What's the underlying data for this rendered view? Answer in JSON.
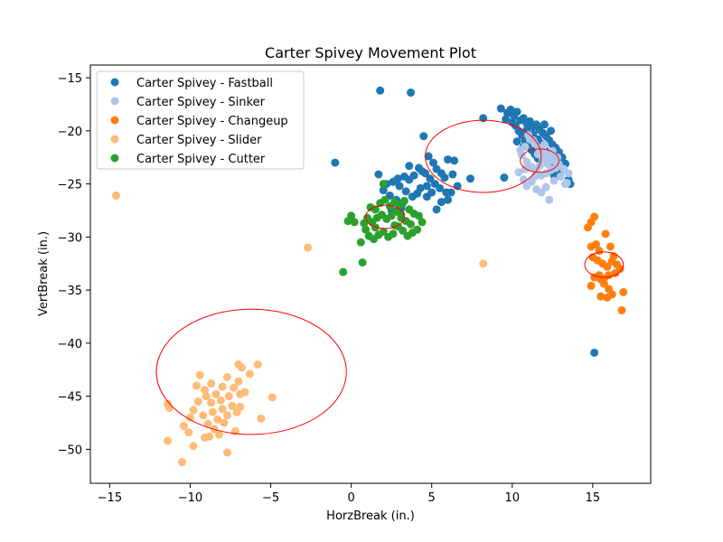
{
  "chart_data": {
    "type": "scatter",
    "title": "Carter Spivey Movement Plot",
    "xlabel": "HorzBreak (in.)",
    "ylabel": "VertBreak (in.)",
    "xlim": [
      -16.2,
      18.6
    ],
    "ylim": [
      -53.2,
      -13.8
    ],
    "xticks": [
      -15,
      -10,
      -5,
      0,
      5,
      10,
      15
    ],
    "yticks": [
      -15,
      -20,
      -25,
      -30,
      -35,
      -40,
      -45,
      -50
    ],
    "grid": false,
    "legend_position": "top-left",
    "series": [
      {
        "name": "Carter Spivey - Fastball",
        "color": "#1f77b4",
        "points": [
          [
            1.8,
            -16.2
          ],
          [
            3.7,
            -16.4
          ],
          [
            -1.0,
            -23.0
          ],
          [
            1.7,
            -24.1
          ],
          [
            15.1,
            -40.9
          ],
          [
            9.5,
            -24.4
          ],
          [
            8.2,
            -18.8
          ],
          [
            7.4,
            -24.5
          ],
          [
            4.5,
            -20.5
          ],
          [
            4.8,
            -22.4
          ],
          [
            5.1,
            -23.0
          ],
          [
            5.3,
            -23.6
          ],
          [
            5.6,
            -24.0
          ],
          [
            5.8,
            -24.4
          ],
          [
            6.0,
            -22.7
          ],
          [
            6.4,
            -22.8
          ],
          [
            6.6,
            -25.2
          ],
          [
            6.2,
            -25.8
          ],
          [
            6.0,
            -26.5
          ],
          [
            5.6,
            -26.7
          ],
          [
            5.3,
            -27.4
          ],
          [
            4.7,
            -26.2
          ],
          [
            4.3,
            -25.4
          ],
          [
            4.1,
            -25.9
          ],
          [
            3.8,
            -26.2
          ],
          [
            3.4,
            -25.7
          ],
          [
            3.0,
            -25.2
          ],
          [
            2.6,
            -24.8
          ],
          [
            2.2,
            -25.0
          ],
          [
            2.0,
            -25.6
          ],
          [
            2.4,
            -26.1
          ],
          [
            2.8,
            -26.5
          ],
          [
            3.2,
            -26.8
          ],
          [
            3.6,
            -24.6
          ],
          [
            3.9,
            -24.2
          ],
          [
            4.2,
            -23.5
          ],
          [
            4.6,
            -24.0
          ],
          [
            4.9,
            -24.5
          ],
          [
            5.2,
            -25.0
          ],
          [
            5.5,
            -25.4
          ],
          [
            5.9,
            -25.8
          ],
          [
            6.3,
            -24.1
          ],
          [
            3.3,
            -24.3
          ],
          [
            2.9,
            -24.5
          ],
          [
            3.6,
            -23.3
          ],
          [
            4.4,
            -23.8
          ],
          [
            4.7,
            -25.2
          ],
          [
            5.0,
            -25.8
          ],
          [
            3.1,
            -27.3
          ],
          [
            2.5,
            -27.5
          ],
          [
            9.7,
            -18.3
          ],
          [
            9.9,
            -18.0
          ],
          [
            10.1,
            -18.6
          ],
          [
            10.3,
            -18.2
          ],
          [
            10.5,
            -19.0
          ],
          [
            10.7,
            -18.8
          ],
          [
            10.9,
            -19.3
          ],
          [
            11.1,
            -19.1
          ],
          [
            11.3,
            -19.6
          ],
          [
            11.5,
            -19.4
          ],
          [
            11.7,
            -19.9
          ],
          [
            11.9,
            -20.2
          ],
          [
            12.1,
            -20.5
          ],
          [
            12.3,
            -20.9
          ],
          [
            12.5,
            -21.3
          ],
          [
            12.7,
            -21.6
          ],
          [
            12.9,
            -22.0
          ],
          [
            13.1,
            -22.5
          ],
          [
            13.3,
            -23.1
          ],
          [
            13.0,
            -23.8
          ],
          [
            12.6,
            -24.2
          ],
          [
            13.5,
            -24.6
          ],
          [
            13.6,
            -25.0
          ],
          [
            10.2,
            -19.5
          ],
          [
            10.4,
            -20.0
          ],
          [
            10.6,
            -20.4
          ],
          [
            10.8,
            -20.9
          ],
          [
            11.0,
            -21.3
          ],
          [
            11.2,
            -21.8
          ],
          [
            11.4,
            -22.2
          ],
          [
            11.6,
            -22.6
          ],
          [
            11.8,
            -21.2
          ],
          [
            12.0,
            -21.7
          ],
          [
            12.2,
            -22.1
          ],
          [
            12.4,
            -22.6
          ],
          [
            12.6,
            -23.0
          ],
          [
            11.3,
            -20.3
          ],
          [
            10.9,
            -19.9
          ],
          [
            11.6,
            -20.8
          ],
          [
            12.0,
            -19.4
          ],
          [
            12.4,
            -20.0
          ],
          [
            10.0,
            -19.2
          ],
          [
            9.6,
            -18.9
          ],
          [
            10.3,
            -21.0
          ],
          [
            10.7,
            -21.5
          ],
          [
            9.3,
            -17.9
          ]
        ]
      },
      {
        "name": "Carter Spivey - Sinker",
        "color": "#aec7e8",
        "points": [
          [
            10.4,
            -23.9
          ],
          [
            10.7,
            -24.6
          ],
          [
            10.9,
            -25.2
          ],
          [
            11.2,
            -24.8
          ],
          [
            11.5,
            -25.5
          ],
          [
            11.8,
            -25.8
          ],
          [
            12.1,
            -25.3
          ],
          [
            12.3,
            -26.5
          ],
          [
            12.6,
            -24.7
          ],
          [
            13.0,
            -24.3
          ],
          [
            13.3,
            -25.0
          ],
          [
            13.5,
            -24.0
          ],
          [
            13.2,
            -23.6
          ],
          [
            12.9,
            -23.2
          ],
          [
            12.6,
            -22.8
          ],
          [
            12.3,
            -22.4
          ],
          [
            12.0,
            -22.0
          ],
          [
            11.7,
            -21.6
          ],
          [
            11.4,
            -21.2
          ],
          [
            11.1,
            -20.8
          ],
          [
            10.8,
            -21.5
          ],
          [
            10.6,
            -22.3
          ],
          [
            10.9,
            -22.9
          ],
          [
            11.2,
            -23.4
          ],
          [
            11.5,
            -23.8
          ],
          [
            11.8,
            -24.2
          ],
          [
            12.1,
            -24.0
          ],
          [
            12.4,
            -23.7
          ],
          [
            12.7,
            -23.5
          ],
          [
            11.0,
            -20.4
          ],
          [
            11.3,
            -20.9
          ],
          [
            11.6,
            -22.2
          ],
          [
            11.9,
            -22.7
          ],
          [
            12.2,
            -23.1
          ],
          [
            12.5,
            -21.9
          ],
          [
            12.8,
            -22.5
          ],
          [
            10.5,
            -21.8
          ],
          [
            11.4,
            -24.3
          ],
          [
            11.7,
            -23.3
          ],
          [
            12.0,
            -21.3
          ],
          [
            10.8,
            -23.6
          ],
          [
            13.4,
            -24.9
          ]
        ]
      },
      {
        "name": "Carter Spivey - Changeup",
        "color": "#ff7f0e",
        "points": [
          [
            15.1,
            -28.1
          ],
          [
            14.9,
            -28.6
          ],
          [
            14.7,
            -29.1
          ],
          [
            15.8,
            -29.7
          ],
          [
            16.1,
            -30.9
          ],
          [
            15.4,
            -31.3
          ],
          [
            15.2,
            -30.7
          ],
          [
            14.9,
            -30.9
          ],
          [
            15.0,
            -31.9
          ],
          [
            15.3,
            -32.2
          ],
          [
            15.6,
            -32.5
          ],
          [
            15.9,
            -32.8
          ],
          [
            16.2,
            -32.3
          ],
          [
            16.5,
            -32.6
          ],
          [
            16.7,
            -33.0
          ],
          [
            16.4,
            -33.4
          ],
          [
            16.0,
            -33.6
          ],
          [
            15.7,
            -33.9
          ],
          [
            15.4,
            -33.6
          ],
          [
            15.1,
            -33.8
          ],
          [
            14.9,
            -34.6
          ],
          [
            15.7,
            -34.4
          ],
          [
            16.0,
            -34.9
          ],
          [
            15.5,
            -35.6
          ],
          [
            16.2,
            -35.4
          ],
          [
            15.9,
            -35.7
          ],
          [
            16.9,
            -35.2
          ],
          [
            16.8,
            -36.9
          ],
          [
            15.5,
            -34.0
          ],
          [
            16.3,
            -31.8
          ]
        ]
      },
      {
        "name": "Carter Spivey - Slider",
        "color": "#ffbb78",
        "points": [
          [
            -14.6,
            -26.1
          ],
          [
            -2.7,
            -31.0
          ],
          [
            8.2,
            -32.5
          ],
          [
            -10.5,
            -51.2
          ],
          [
            -7.7,
            -50.3
          ],
          [
            -11.4,
            -49.2
          ],
          [
            -9.8,
            -49.7
          ],
          [
            -11.4,
            -45.7
          ],
          [
            -11.3,
            -46.1
          ],
          [
            -10.4,
            -47.8
          ],
          [
            -10.1,
            -48.4
          ],
          [
            -9.4,
            -43.0
          ],
          [
            -9.1,
            -44.4
          ],
          [
            -8.7,
            -43.8
          ],
          [
            -8.4,
            -44.8
          ],
          [
            -8.1,
            -45.4
          ],
          [
            -7.7,
            -43.2
          ],
          [
            -7.3,
            -44.2
          ],
          [
            -7.0,
            -43.6
          ],
          [
            -6.8,
            -42.3
          ],
          [
            -6.6,
            -44.6
          ],
          [
            -6.3,
            -42.9
          ],
          [
            -5.8,
            -42.0
          ],
          [
            -4.9,
            -45.1
          ],
          [
            -5.6,
            -47.1
          ],
          [
            -6.9,
            -46.0
          ],
          [
            -7.1,
            -46.5
          ],
          [
            -7.4,
            -45.9
          ],
          [
            -7.7,
            -46.8
          ],
          [
            -8.0,
            -46.2
          ],
          [
            -8.3,
            -47.2
          ],
          [
            -8.6,
            -46.5
          ],
          [
            -8.9,
            -47.6
          ],
          [
            -9.2,
            -46.8
          ],
          [
            -9.5,
            -45.5
          ],
          [
            -9.8,
            -46.3
          ],
          [
            -10.0,
            -47.0
          ],
          [
            -8.2,
            -48.6
          ],
          [
            -8.5,
            -48.1
          ],
          [
            -8.8,
            -48.8
          ],
          [
            -9.1,
            -48.9
          ],
          [
            -7.2,
            -48.3
          ],
          [
            -6.9,
            -44.8
          ],
          [
            -7.6,
            -45.0
          ],
          [
            -8.0,
            -44.1
          ],
          [
            -8.7,
            -45.6
          ],
          [
            -9.0,
            -45.0
          ],
          [
            -7.9,
            -47.5
          ],
          [
            -7.0,
            -42.0
          ],
          [
            -9.6,
            -44.0
          ]
        ]
      },
      {
        "name": "Carter Spivey - Cutter",
        "color": "#2ca02c",
        "points": [
          [
            -0.5,
            -33.3
          ],
          [
            0.7,
            -32.4
          ],
          [
            0.6,
            -30.5
          ],
          [
            0.2,
            -28.6
          ],
          [
            0.0,
            -28.0
          ],
          [
            -0.2,
            -28.5
          ],
          [
            1.2,
            -27.2
          ],
          [
            1.5,
            -27.4
          ],
          [
            1.8,
            -26.8
          ],
          [
            2.1,
            -26.5
          ],
          [
            2.4,
            -27.1
          ],
          [
            2.7,
            -26.7
          ],
          [
            3.0,
            -27.0
          ],
          [
            3.3,
            -26.6
          ],
          [
            3.6,
            -27.4
          ],
          [
            3.9,
            -27.8
          ],
          [
            4.2,
            -28.0
          ],
          [
            4.4,
            -28.6
          ],
          [
            4.1,
            -29.3
          ],
          [
            3.8,
            -29.6
          ],
          [
            3.5,
            -29.9
          ],
          [
            3.2,
            -29.4
          ],
          [
            2.9,
            -29.0
          ],
          [
            2.6,
            -29.7
          ],
          [
            2.3,
            -30.0
          ],
          [
            2.0,
            -29.5
          ],
          [
            1.7,
            -29.8
          ],
          [
            1.4,
            -30.2
          ],
          [
            1.1,
            -29.9
          ],
          [
            0.9,
            -29.3
          ],
          [
            0.8,
            -28.7
          ],
          [
            1.0,
            -28.2
          ],
          [
            1.3,
            -28.6
          ],
          [
            1.6,
            -28.2
          ],
          [
            1.9,
            -27.9
          ],
          [
            2.2,
            -28.3
          ],
          [
            2.5,
            -28.0
          ],
          [
            2.8,
            -27.6
          ],
          [
            3.1,
            -28.2
          ],
          [
            3.4,
            -28.5
          ],
          [
            3.7,
            -28.8
          ],
          [
            2.0,
            -25.0
          ],
          [
            3.1,
            -27.9
          ],
          [
            2.7,
            -28.9
          ],
          [
            1.5,
            -29.1
          ]
        ]
      }
    ],
    "ellipses": [
      {
        "color": "#ff0000",
        "center": [
          8.2,
          -22.4
        ],
        "rx": 3.6,
        "ry": 3.4
      },
      {
        "color": "#ff0000",
        "center": [
          11.7,
          -22.8
        ],
        "rx": 1.2,
        "ry": 1.1
      },
      {
        "color": "#ff0000",
        "center": [
          15.7,
          -32.6
        ],
        "rx": 1.2,
        "ry": 1.2
      },
      {
        "color": "#ff0000",
        "center": [
          -6.2,
          -42.7
        ],
        "rx": 5.9,
        "ry": 5.9
      },
      {
        "color": "#ff0000",
        "center": [
          2.1,
          -28.1
        ],
        "rx": 1.2,
        "ry": 1.1
      }
    ]
  }
}
